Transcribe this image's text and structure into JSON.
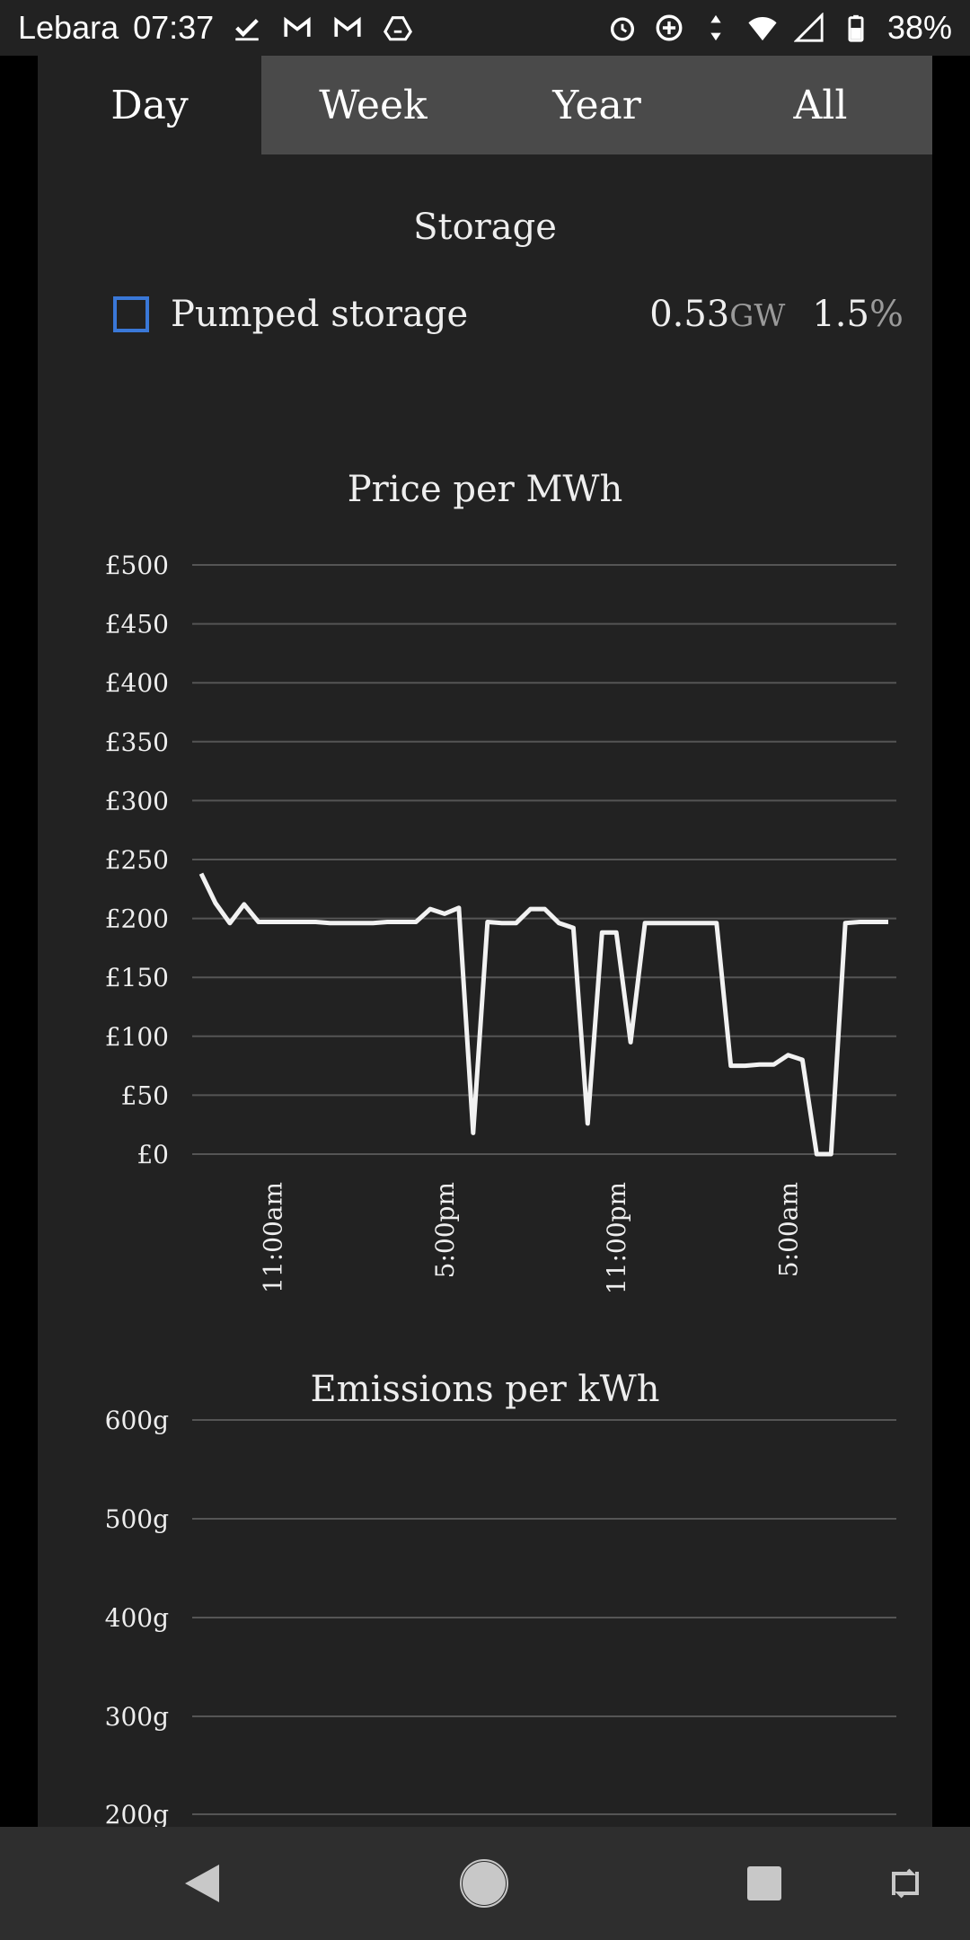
{
  "status_bar": {
    "carrier": "Lebara",
    "time": "07:37",
    "battery": "38%",
    "left_icons": [
      "check-icon",
      "gmail-icon",
      "gmail-icon",
      "drive-icon"
    ],
    "right_icons": [
      "alarm-icon",
      "data-saver-icon",
      "data-arrows-icon",
      "wifi-icon",
      "signal-icon",
      "battery-icon"
    ]
  },
  "tabs": [
    {
      "label": "Day",
      "active": true
    },
    {
      "label": "Week",
      "active": false
    },
    {
      "label": "Year",
      "active": false
    },
    {
      "label": "All",
      "active": false
    }
  ],
  "storage": {
    "title": "Storage",
    "item_label": "Pumped storage",
    "value": "0.53",
    "unit": "GW",
    "percent_num": "1.5",
    "percent_sym": "%",
    "legend_color": "#3a78d8"
  },
  "price_title": "Price per MWh",
  "emissions_title": "Emissions per kWh",
  "chart_data": [
    {
      "type": "line",
      "title": "Price per MWh",
      "ylim": [
        0,
        500
      ],
      "y_ticks": [
        "£0",
        "£50",
        "£100",
        "£150",
        "£200",
        "£250",
        "£300",
        "£350",
        "£400",
        "£450",
        "£500"
      ],
      "x_tick_labels": [
        "11:00am",
        "5:00pm",
        "11:00pm",
        "5:00am"
      ],
      "x_tick_positions_hours": [
        2.5,
        8.5,
        14.5,
        20.5
      ],
      "grid": true,
      "line_color": "#f2f2f2",
      "series": [
        {
          "x": [
            0,
            0.5,
            1,
            1.5,
            2,
            2.5,
            3,
            3.5,
            4,
            4.5,
            5,
            5.5,
            6,
            6.5,
            7,
            7.5,
            8,
            8.5,
            9,
            9.5,
            10,
            10.5,
            11,
            11.5,
            12,
            12.5,
            13,
            13.5,
            14,
            14.5,
            15,
            15.5,
            16,
            16.5,
            17,
            17.5,
            18,
            18.5,
            19,
            19.5,
            20,
            20.5,
            21,
            21.5,
            22,
            22.5,
            23,
            23.5,
            24
          ],
          "values": [
            238,
            213,
            196,
            212,
            197,
            197,
            197,
            197,
            197,
            196,
            196,
            196,
            196,
            197,
            197,
            197,
            208,
            204,
            209,
            18,
            197,
            196,
            196,
            208,
            208,
            196,
            192,
            26,
            188,
            188,
            95,
            196,
            196,
            196,
            196,
            196,
            196,
            75,
            75,
            76,
            76,
            84,
            80,
            0,
            0,
            196,
            197,
            197,
            197
          ]
        }
      ]
    },
    {
      "type": "line",
      "title": "Emissions per kWh",
      "y_ticks_visible": [
        "200g",
        "300g",
        "400g",
        "500g",
        "600g"
      ],
      "grid": true,
      "series": []
    }
  ]
}
